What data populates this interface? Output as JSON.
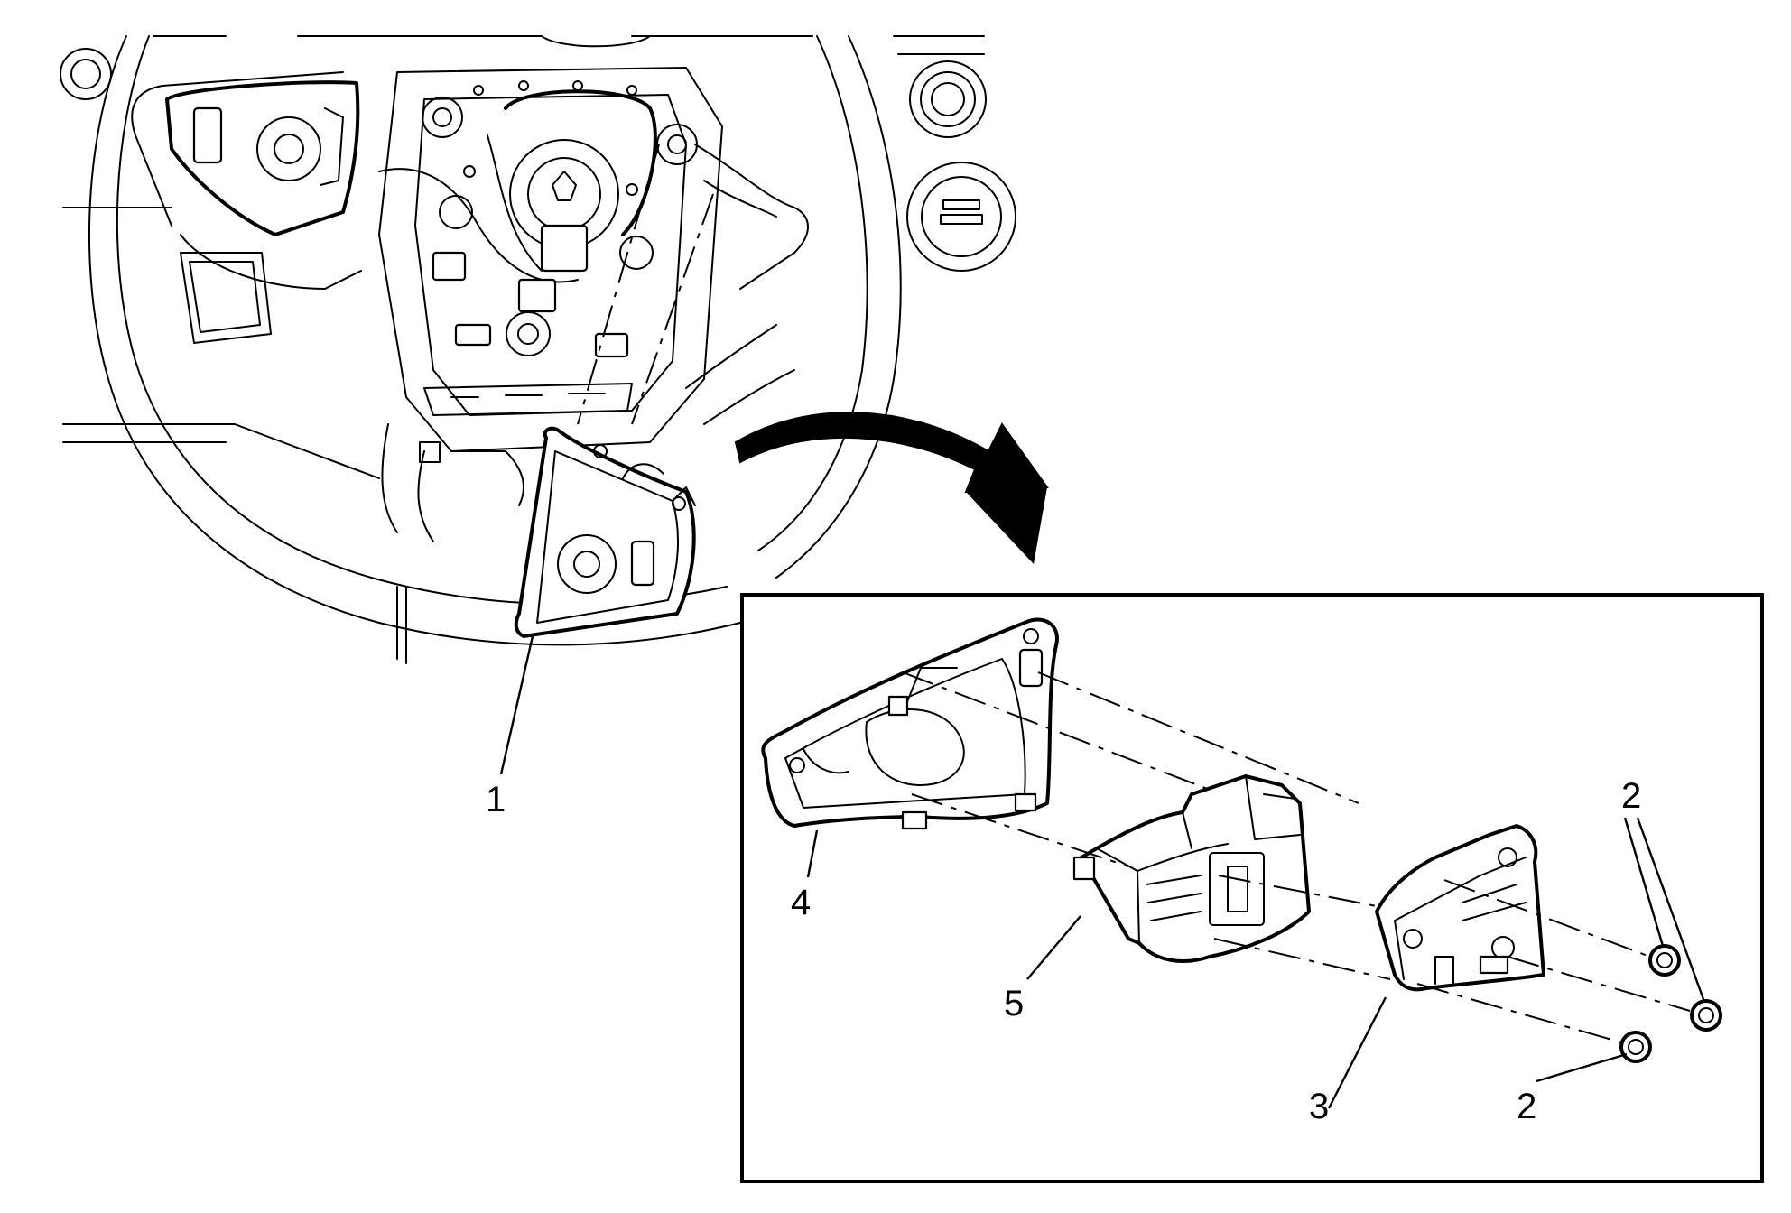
{
  "callouts": [
    {
      "id": "callout-1",
      "text": "1"
    },
    {
      "id": "callout-2-top",
      "text": "2"
    },
    {
      "id": "callout-2-bottom",
      "text": "2"
    },
    {
      "id": "callout-3",
      "text": "3"
    },
    {
      "id": "callout-4",
      "text": "4"
    },
    {
      "id": "callout-5",
      "text": "5"
    }
  ],
  "colors": {
    "line": "#000000",
    "background": "#ffffff"
  }
}
